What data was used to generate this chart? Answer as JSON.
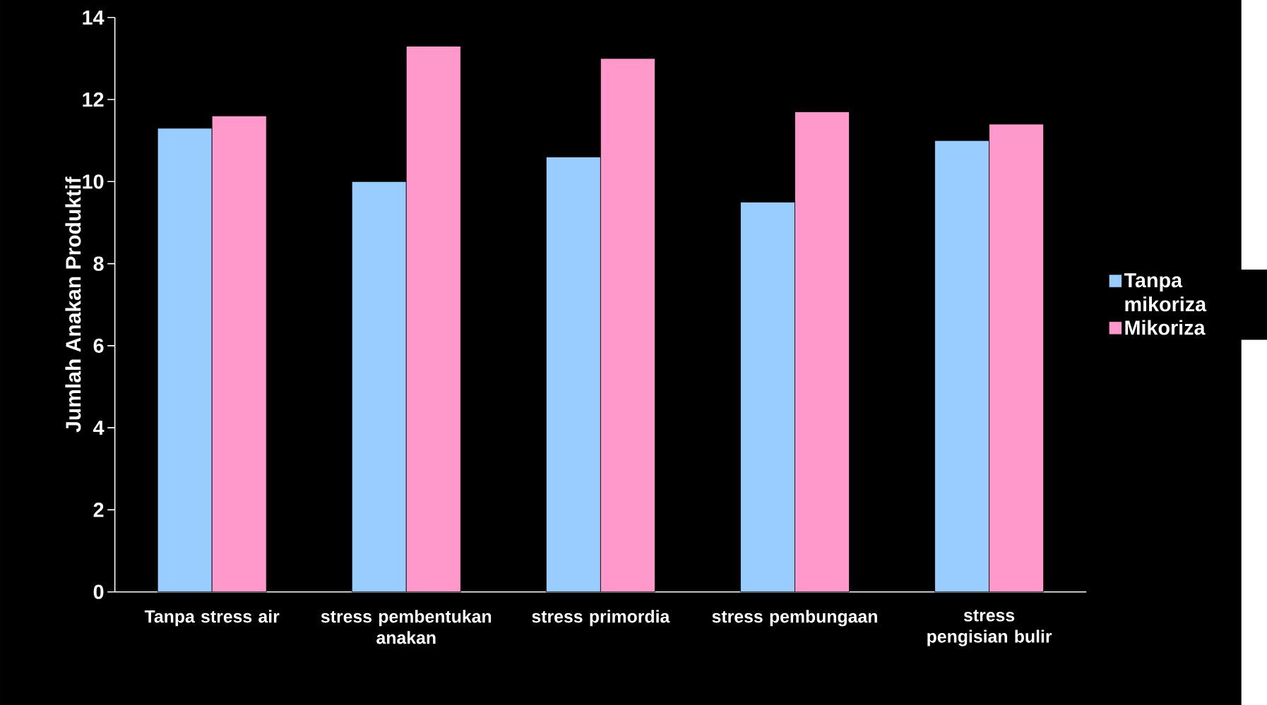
{
  "chart_data": {
    "type": "bar",
    "ylabel": "Jumlah Anakan Produktif",
    "categories": [
      "Tanpa stress air",
      "stress pembentukan anakan",
      "stress primordia",
      "stress pembungaan",
      "stress pengisian bulir"
    ],
    "series": [
      {
        "name": "Tanpa mikoriza",
        "color": "#99ccff",
        "values": [
          11.3,
          10.0,
          10.6,
          9.5,
          11.0
        ]
      },
      {
        "name": "Mikoriza",
        "color": "#ff99cc",
        "values": [
          11.6,
          13.3,
          13.0,
          11.7,
          11.4
        ]
      }
    ],
    "ylim": [
      0,
      14
    ],
    "yticks": [
      0,
      2,
      4,
      6,
      8,
      10,
      12,
      14
    ],
    "legend": "right"
  }
}
